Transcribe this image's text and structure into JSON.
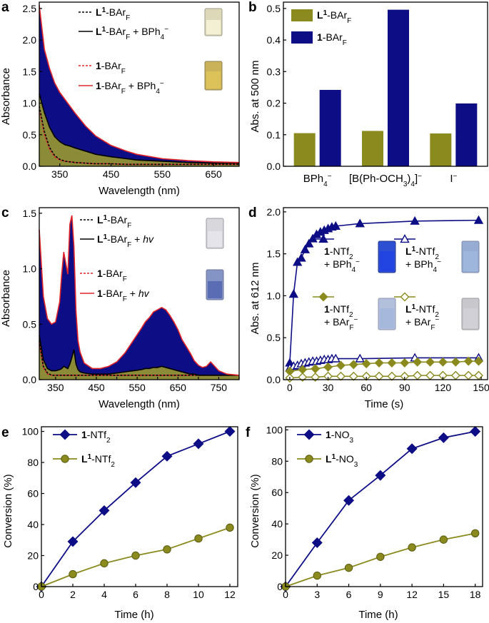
{
  "colors": {
    "navy": "#0d0d85",
    "olive": "#8a8a1e",
    "olive_fill": "#8c8c38",
    "red": "#e0252a",
    "black": "#000000"
  },
  "chart_data": [
    {
      "id": "a",
      "panel_label": "a",
      "type": "area",
      "xlabel": "Wavelength (nm)",
      "ylabel": "Absorbance",
      "xlim": [
        310,
        700
      ],
      "ylim": [
        0,
        2.6
      ],
      "xticks": [
        "350",
        "450",
        "550",
        "650"
      ],
      "xtick_values": [
        350,
        450,
        550,
        650
      ],
      "yticks": [
        "0.0",
        "0.5",
        "1.0",
        "1.5",
        "2.0",
        "2.5"
      ],
      "ytick_values": [
        0,
        0.5,
        1.0,
        1.5,
        2.0,
        2.5
      ],
      "x": [
        310,
        320,
        330,
        340,
        350,
        360,
        370,
        380,
        400,
        420,
        450,
        480,
        500,
        550,
        600,
        650,
        700
      ],
      "series": [
        {
          "name": "1-BArF + BPh4−",
          "style": "red-solid",
          "values": [
            2.55,
            1.85,
            1.55,
            1.32,
            1.17,
            1.06,
            0.95,
            0.84,
            0.64,
            0.48,
            0.33,
            0.24,
            0.19,
            0.12,
            0.09,
            0.07,
            0.06
          ]
        },
        {
          "name": "L1-BArF + BPh4−",
          "style": "black-solid",
          "values": [
            1.15,
            0.85,
            0.62,
            0.47,
            0.39,
            0.34,
            0.32,
            0.29,
            0.24,
            0.19,
            0.15,
            0.12,
            0.1,
            0.08,
            0.06,
            0.05,
            0.05
          ]
        },
        {
          "name": "L1-BArF",
          "style": "black-dashed",
          "values": [
            0.95,
            0.55,
            0.3,
            0.17,
            0.11,
            0.08,
            0.07,
            0.06,
            0.05,
            0.04,
            0.04,
            0.03,
            0.03,
            0.03,
            0.03,
            0.03,
            0.03
          ]
        },
        {
          "name": "1-BArF",
          "style": "red-dashed",
          "values": [
            0.9,
            0.5,
            0.27,
            0.15,
            0.1,
            0.08,
            0.07,
            0.06,
            0.05,
            0.04,
            0.04,
            0.03,
            0.03,
            0.03,
            0.03,
            0.03,
            0.03
          ]
        }
      ],
      "legend": [
        {
          "main": "L",
          "sup": "1",
          "rest": "-BAr",
          "sub": "F",
          "extra": "",
          "style": "black-dashed"
        },
        {
          "main": "L",
          "sup": "1",
          "rest": "-BAr",
          "sub": "F",
          "extra": " + BPh",
          "extra_sub": "4",
          "extra_sup": "−",
          "style": "black-solid"
        },
        {
          "main": "1",
          "sup": "",
          "rest": "-BAr",
          "sub": "F",
          "extra": "",
          "style": "red-dashed"
        },
        {
          "main": "1",
          "sup": "",
          "rest": "-BAr",
          "sub": "F",
          "extra": " + BPh",
          "extra_sub": "4",
          "extra_sup": "−",
          "style": "red-solid"
        }
      ]
    },
    {
      "id": "b",
      "panel_label": "b",
      "type": "bar",
      "ylabel": "Abs. at 500 nm",
      "ylim": [
        0,
        0.52
      ],
      "yticks": [
        "0.0",
        "0.1",
        "0.2",
        "0.3",
        "0.4",
        "0.5"
      ],
      "ytick_values": [
        0,
        0.1,
        0.2,
        0.3,
        0.4,
        0.5
      ],
      "categories": [
        "BPh4−",
        "[B(Ph-OCH3)4]−",
        "I−"
      ],
      "series": [
        {
          "name": "L1-BArF",
          "color_key": "olive",
          "values": [
            0.105,
            0.112,
            0.104
          ]
        },
        {
          "name": "1-BArF",
          "color_key": "navy",
          "values": [
            0.242,
            0.496,
            0.199
          ]
        }
      ]
    },
    {
      "id": "c",
      "panel_label": "c",
      "type": "area",
      "xlabel": "Wavelength (nm)",
      "ylabel": "Absorbance",
      "xlim": [
        310,
        800
      ],
      "ylim": [
        0,
        1.55
      ],
      "xticks": [
        "350",
        "400",
        "450",
        "500",
        "550",
        "600",
        "650",
        "700",
        "750",
        "800"
      ],
      "xtick_values": [
        350,
        400,
        450,
        500,
        550,
        600,
        650,
        700,
        750,
        800
      ],
      "xtick_labels_shown": [
        "350",
        "",
        "450",
        "",
        "550",
        "",
        "650",
        "",
        "750",
        ""
      ],
      "yticks": [
        "0.0",
        "0.5",
        "1.0",
        "1.5"
      ],
      "ytick_values": [
        0,
        0.5,
        1.0,
        1.5
      ],
      "x": [
        310,
        320,
        330,
        340,
        350,
        360,
        365,
        370,
        375,
        380,
        385,
        390,
        395,
        400,
        405,
        410,
        420,
        440,
        460,
        480,
        500,
        520,
        540,
        560,
        570,
        580,
        590,
        600,
        610,
        620,
        630,
        640,
        650,
        660,
        670,
        680,
        690,
        700,
        710,
        720,
        730,
        740,
        750,
        770,
        800
      ],
      "series": [
        {
          "name": "1-BArF + hv",
          "style": "red-solid",
          "values": [
            1.35,
            0.75,
            0.55,
            0.5,
            0.52,
            0.7,
            0.95,
            1.15,
            1.05,
            0.95,
            1.4,
            1.48,
            1.2,
            0.62,
            0.35,
            0.25,
            0.15,
            0.1,
            0.1,
            0.12,
            0.16,
            0.24,
            0.35,
            0.46,
            0.52,
            0.56,
            0.61,
            0.63,
            0.65,
            0.63,
            0.58,
            0.52,
            0.45,
            0.36,
            0.3,
            0.24,
            0.17,
            0.13,
            0.11,
            0.12,
            0.16,
            0.12,
            0.08,
            0.05,
            0.04
          ]
        },
        {
          "name": "L1-BArF + hv",
          "style": "black-solid",
          "values": [
            0.4,
            0.18,
            0.1,
            0.08,
            0.08,
            0.09,
            0.1,
            0.12,
            0.11,
            0.1,
            0.14,
            0.2,
            0.27,
            0.14,
            0.09,
            0.07,
            0.06,
            0.05,
            0.05,
            0.05,
            0.06,
            0.07,
            0.08,
            0.09,
            0.1,
            0.1,
            0.11,
            0.11,
            0.12,
            0.11,
            0.1,
            0.09,
            0.08,
            0.07,
            0.06,
            0.05,
            0.05,
            0.04,
            0.04,
            0.04,
            0.04,
            0.04,
            0.04,
            0.04,
            0.04
          ]
        },
        {
          "name": "L1-BArF",
          "style": "black-dashed",
          "values": [
            0.35,
            0.12,
            0.06,
            0.04,
            0.04,
            0.04,
            0.04,
            0.04,
            0.04,
            0.04,
            0.04,
            0.04,
            0.04,
            0.04,
            0.04,
            0.04,
            0.04,
            0.04,
            0.04,
            0.04,
            0.04,
            0.04,
            0.04,
            0.04,
            0.04,
            0.04,
            0.04,
            0.04,
            0.04,
            0.04,
            0.04,
            0.04,
            0.04,
            0.04,
            0.04,
            0.04,
            0.04,
            0.04,
            0.04,
            0.04,
            0.04,
            0.04,
            0.04,
            0.04,
            0.04
          ]
        },
        {
          "name": "1-BArF",
          "style": "red-dashed",
          "values": [
            0.33,
            0.11,
            0.05,
            0.04,
            0.04,
            0.04,
            0.04,
            0.04,
            0.04,
            0.04,
            0.04,
            0.04,
            0.04,
            0.04,
            0.04,
            0.04,
            0.04,
            0.04,
            0.04,
            0.04,
            0.04,
            0.04,
            0.04,
            0.04,
            0.04,
            0.04,
            0.04,
            0.04,
            0.04,
            0.04,
            0.04,
            0.04,
            0.04,
            0.04,
            0.04,
            0.04,
            0.04,
            0.04,
            0.04,
            0.04,
            0.04,
            0.04,
            0.04,
            0.04,
            0.04
          ]
        }
      ],
      "legend": [
        {
          "main": "L",
          "sup": "1",
          "rest": "-BAr",
          "sub": "F",
          "extra": "",
          "style": "black-dashed"
        },
        {
          "main": "L",
          "sup": "1",
          "rest": "-BAr",
          "sub": "F",
          "extra": " + ",
          "extra_italic": "hv",
          "style": "black-solid"
        },
        {
          "main": "1",
          "sup": "",
          "rest": "-BAr",
          "sub": "F",
          "extra": "",
          "style": "red-dashed"
        },
        {
          "main": "1",
          "sup": "",
          "rest": "-BAr",
          "sub": "F",
          "extra": " + ",
          "extra_italic": "hv",
          "style": "red-solid"
        }
      ]
    },
    {
      "id": "d",
      "panel_label": "d",
      "type": "scatter",
      "xlabel": "Time (s)",
      "ylabel": "Abs. at 612 nm",
      "xlim": [
        -5,
        155
      ],
      "ylim": [
        0,
        2.05
      ],
      "xticks": [
        "0",
        "30",
        "60",
        "90",
        "120",
        "150"
      ],
      "xtick_values": [
        0,
        30,
        60,
        90,
        120,
        150
      ],
      "yticks": [
        "0.0",
        "0.5",
        "1.0",
        "1.5",
        "2.0"
      ],
      "ytick_values": [
        0,
        0.5,
        1.0,
        1.5,
        2.0
      ],
      "series": [
        {
          "name": "1-NTf2 + BPh4−",
          "marker": "triangle-filled",
          "color_key": "navy",
          "x": [
            0,
            3,
            6,
            9,
            12,
            15,
            18,
            21,
            24,
            27,
            30,
            33,
            36,
            55,
            98,
            148
          ],
          "values": [
            0.2,
            1.02,
            1.4,
            1.45,
            1.55,
            1.62,
            1.68,
            1.73,
            1.76,
            1.78,
            1.8,
            1.82,
            1.83,
            1.86,
            1.89,
            1.9
          ]
        },
        {
          "name": "L1-NTf2 + BPh4−",
          "marker": "triangle-open",
          "color_key": "navy",
          "x": [
            0,
            3,
            6,
            9,
            12,
            15,
            18,
            21,
            24,
            27,
            30,
            33,
            36,
            55,
            98,
            148
          ],
          "values": [
            0.14,
            0.16,
            0.17,
            0.19,
            0.2,
            0.21,
            0.22,
            0.22,
            0.23,
            0.24,
            0.24,
            0.25,
            0.25,
            0.25,
            0.26,
            0.26
          ]
        },
        {
          "name": "1-NTf2 + BArF−",
          "marker": "diamond-filled",
          "color_key": "olive",
          "x": [
            0,
            10,
            20,
            30,
            40,
            50,
            60,
            70,
            80,
            90,
            100,
            110,
            120,
            130,
            140,
            148
          ],
          "values": [
            0.1,
            0.12,
            0.13,
            0.15,
            0.17,
            0.18,
            0.19,
            0.2,
            0.2,
            0.2,
            0.21,
            0.21,
            0.21,
            0.21,
            0.22,
            0.22
          ]
        },
        {
          "name": "L1-NTf2 + BArF−",
          "marker": "diamond-open",
          "color_key": "olive",
          "x": [
            0,
            10,
            20,
            30,
            40,
            50,
            60,
            70,
            80,
            90,
            100,
            110,
            120,
            130,
            140,
            148
          ],
          "values": [
            0.02,
            0.03,
            0.03,
            0.04,
            0.04,
            0.04,
            0.04,
            0.04,
            0.04,
            0.04,
            0.05,
            0.05,
            0.05,
            0.05,
            0.05,
            0.05
          ]
        }
      ],
      "legend": [
        {
          "line1_main": "1",
          "line1_sup": "",
          "line1_rest": "-NTf",
          "line1_sub": "2",
          "line2": "+ BPh",
          "line2_sub": "4",
          "line2_sup": "−"
        },
        {
          "line1_main": "L",
          "line1_sup": "1",
          "line1_rest": "-NTf",
          "line1_sub": "2",
          "line2": "+ BPh",
          "line2_sub": "4",
          "line2_sup": "−"
        },
        {
          "line1_main": "1",
          "line1_sup": "",
          "line1_rest": "-NTf",
          "line1_sub": "2",
          "line2": "+ BAr",
          "line2_sub": "F",
          "line2_sup": "−"
        },
        {
          "line1_main": "L",
          "line1_sup": "1",
          "line1_rest": "-NTf",
          "line1_sub": "2",
          "line2": "+ BAr",
          "line2_sub": "F",
          "line2_sup": "−"
        }
      ]
    },
    {
      "id": "e",
      "panel_label": "e",
      "type": "line",
      "xlabel": "Time (h)",
      "ylabel": "Conversion (%)",
      "xlim": [
        0,
        12.5
      ],
      "ylim": [
        0,
        103
      ],
      "xticks": [
        "0",
        "2",
        "4",
        "6",
        "8",
        "10",
        "12"
      ],
      "xtick_values": [
        0,
        2,
        4,
        6,
        8,
        10,
        12
      ],
      "yticks": [
        "0",
        "20",
        "40",
        "60",
        "80",
        "100"
      ],
      "ytick_values": [
        0,
        20,
        40,
        60,
        80,
        100
      ],
      "x": [
        0,
        2,
        4,
        6,
        8,
        10,
        12
      ],
      "series": [
        {
          "name": "1-NTf2",
          "marker": "diamond",
          "color_key": "navy",
          "values": [
            0,
            29,
            49,
            67,
            84,
            92,
            100
          ]
        },
        {
          "name": "L1-NTf2",
          "marker": "circle",
          "color_key": "olive",
          "values": [
            0,
            8,
            15,
            20,
            24,
            31,
            38
          ]
        }
      ],
      "legend": [
        {
          "main": "1",
          "sup": "",
          "rest": "-NTf",
          "sub": "2"
        },
        {
          "main": "L",
          "sup": "1",
          "rest": "-NTf",
          "sub": "2"
        }
      ]
    },
    {
      "id": "f",
      "panel_label": "f",
      "type": "line",
      "xlabel": "Time (h)",
      "ylabel": "Conversion (%)",
      "xlim": [
        0,
        18.7
      ],
      "ylim": [
        0,
        102
      ],
      "xticks": [
        "0",
        "3",
        "6",
        "9",
        "12",
        "15",
        "18"
      ],
      "xtick_values": [
        0,
        3,
        6,
        9,
        12,
        15,
        18
      ],
      "yticks": [
        "0",
        "20",
        "40",
        "60",
        "80",
        "100"
      ],
      "ytick_values": [
        0,
        20,
        40,
        60,
        80,
        100
      ],
      "x": [
        0,
        3,
        6,
        9,
        12,
        15,
        18
      ],
      "series": [
        {
          "name": "1-NO3",
          "marker": "diamond",
          "color_key": "navy",
          "values": [
            0,
            28,
            55,
            71,
            88,
            95,
            99
          ]
        },
        {
          "name": "L1-NO3",
          "marker": "circle",
          "color_key": "olive",
          "values": [
            0,
            7,
            12,
            19,
            25,
            30,
            34
          ]
        }
      ],
      "legend": [
        {
          "main": "1",
          "sup": "",
          "rest": "-NO",
          "sub": "3"
        },
        {
          "main": "L",
          "sup": "1",
          "rest": "-NO",
          "sub": "3"
        }
      ]
    }
  ]
}
